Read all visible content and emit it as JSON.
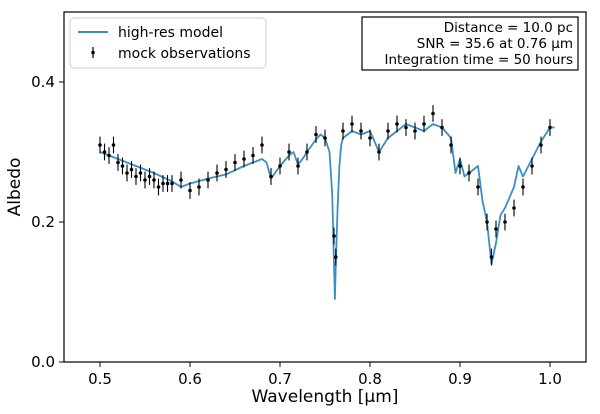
{
  "chart_data": {
    "type": "line",
    "title": "",
    "xlabel": "Wavelength [μm]",
    "ylabel": "Albedo",
    "xlim": [
      0.46,
      1.04
    ],
    "ylim": [
      0.0,
      0.5
    ],
    "xticks": [
      0.5,
      0.6,
      0.7,
      0.8,
      0.9,
      1.0
    ],
    "xtick_labels": [
      "0.5",
      "0.6",
      "0.7",
      "0.8",
      "0.9",
      "1.0"
    ],
    "yticks": [
      0.0,
      0.2,
      0.4
    ],
    "ytick_labels": [
      "0.0",
      "0.2",
      "0.4"
    ],
    "grid": false,
    "legend": {
      "position": "top-left",
      "entries": [
        {
          "label": "high-res model",
          "kind": "line",
          "color": "#3c8fc4"
        },
        {
          "label": "mock observations",
          "kind": "errorbar",
          "color": "#000000"
        }
      ]
    },
    "annotation_box": {
      "position": "top-right",
      "lines": [
        "Distance = 10.0 pc",
        "SNR = 35.6 at 0.76 μm",
        "Integration time = 50 hours"
      ]
    },
    "series": [
      {
        "name": "high-res model",
        "kind": "line",
        "color": "#3c8fc4",
        "x": [
          0.5,
          0.52,
          0.54,
          0.56,
          0.58,
          0.59,
          0.6,
          0.62,
          0.64,
          0.66,
          0.68,
          0.685,
          0.69,
          0.7,
          0.71,
          0.715,
          0.72,
          0.725,
          0.73,
          0.74,
          0.745,
          0.75,
          0.755,
          0.758,
          0.76,
          0.761,
          0.762,
          0.764,
          0.766,
          0.768,
          0.77,
          0.78,
          0.79,
          0.8,
          0.81,
          0.815,
          0.82,
          0.83,
          0.84,
          0.85,
          0.86,
          0.87,
          0.88,
          0.89,
          0.895,
          0.9,
          0.905,
          0.91,
          0.92,
          0.925,
          0.93,
          0.935,
          0.94,
          0.945,
          0.95,
          0.96,
          0.965,
          0.97,
          0.98,
          0.99,
          1.0,
          1.005
        ],
        "y": [
          0.3,
          0.29,
          0.28,
          0.27,
          0.258,
          0.25,
          0.255,
          0.262,
          0.268,
          0.28,
          0.29,
          0.285,
          0.262,
          0.28,
          0.295,
          0.3,
          0.282,
          0.29,
          0.3,
          0.318,
          0.325,
          0.32,
          0.3,
          0.24,
          0.14,
          0.09,
          0.14,
          0.22,
          0.28,
          0.31,
          0.32,
          0.33,
          0.325,
          0.33,
          0.3,
          0.31,
          0.32,
          0.33,
          0.34,
          0.335,
          0.33,
          0.34,
          0.335,
          0.32,
          0.27,
          0.29,
          0.265,
          0.27,
          0.28,
          0.23,
          0.2,
          0.14,
          0.17,
          0.21,
          0.22,
          0.25,
          0.28,
          0.265,
          0.29,
          0.315,
          0.335,
          0.335
        ]
      },
      {
        "name": "mock observations",
        "kind": "errorbar",
        "color": "#000000",
        "x": [
          0.5,
          0.505,
          0.51,
          0.515,
          0.52,
          0.525,
          0.53,
          0.535,
          0.54,
          0.545,
          0.55,
          0.555,
          0.56,
          0.565,
          0.57,
          0.575,
          0.58,
          0.59,
          0.6,
          0.61,
          0.62,
          0.63,
          0.64,
          0.65,
          0.66,
          0.67,
          0.68,
          0.69,
          0.7,
          0.71,
          0.72,
          0.73,
          0.74,
          0.75,
          0.76,
          0.762,
          0.77,
          0.78,
          0.79,
          0.8,
          0.81,
          0.82,
          0.83,
          0.84,
          0.85,
          0.86,
          0.87,
          0.88,
          0.89,
          0.9,
          0.91,
          0.92,
          0.93,
          0.935,
          0.94,
          0.95,
          0.96,
          0.97,
          0.98,
          0.99,
          1.0
        ],
        "y": [
          0.31,
          0.3,
          0.295,
          0.31,
          0.285,
          0.28,
          0.27,
          0.275,
          0.265,
          0.27,
          0.26,
          0.265,
          0.26,
          0.25,
          0.255,
          0.255,
          0.255,
          0.26,
          0.245,
          0.25,
          0.26,
          0.27,
          0.275,
          0.285,
          0.29,
          0.295,
          0.31,
          0.265,
          0.28,
          0.3,
          0.28,
          0.3,
          0.325,
          0.32,
          0.18,
          0.15,
          0.33,
          0.34,
          0.33,
          0.32,
          0.3,
          0.33,
          0.34,
          0.335,
          0.33,
          0.34,
          0.355,
          0.335,
          0.31,
          0.28,
          0.27,
          0.25,
          0.2,
          0.15,
          0.19,
          0.2,
          0.22,
          0.25,
          0.28,
          0.31,
          0.335
        ],
        "error": 0.012
      }
    ]
  }
}
